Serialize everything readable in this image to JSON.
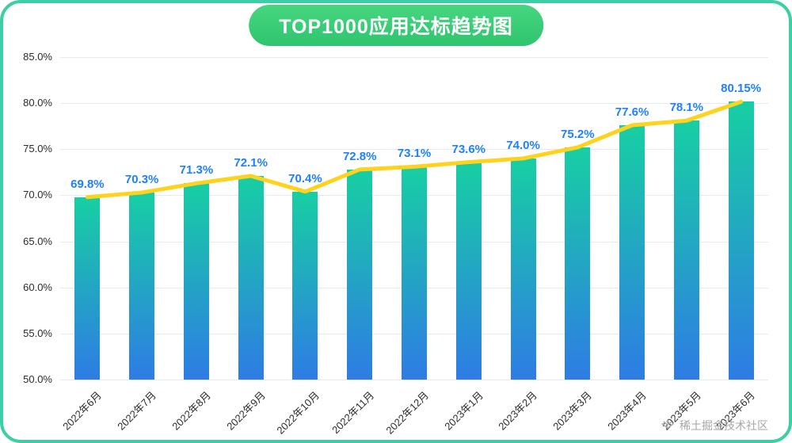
{
  "title": "TOP1000应用达标趋势图",
  "watermark": {
    "text": "稀土掘金技术社区"
  },
  "chart_data": {
    "type": "bar",
    "overlay_line": true,
    "title": "TOP1000应用达标趋势图",
    "categories": [
      "2022年6月",
      "2022年7月",
      "2022年8月",
      "2022年9月",
      "2022年10月",
      "2022年11月",
      "2022年12月",
      "2023年1月",
      "2023年2月",
      "2023年3月",
      "2023年4月",
      "2023年5月",
      "2023年6月"
    ],
    "values": [
      69.8,
      70.3,
      71.3,
      72.1,
      70.4,
      72.8,
      73.1,
      73.6,
      74.0,
      75.2,
      77.6,
      78.1,
      80.15
    ],
    "value_labels": [
      "69.8%",
      "70.3%",
      "71.3%",
      "72.1%",
      "70.4%",
      "72.8%",
      "73.1%",
      "73.6%",
      "74.0%",
      "75.2%",
      "77.6%",
      "78.1%",
      "80.15%"
    ],
    "ylim": [
      50,
      85
    ],
    "ytick_values": [
      85,
      80,
      75,
      70,
      65,
      60,
      55,
      50
    ],
    "ytick_labels": [
      "85.0%",
      "80.0%",
      "75.0%",
      "70.0%",
      "65.0%",
      "60.0%",
      "55.0%",
      "50.0%"
    ],
    "grid": true,
    "legend": false,
    "colors": {
      "bar_gradient_top": "#17cfa3",
      "bar_gradient_bottom": "#2e7ce4",
      "line": "#ffd21e",
      "value_label": "#1e80ff",
      "title_bg_top": "#47d680",
      "title_bg_bottom": "#2fc46e",
      "card_border": "#3ccfa5",
      "axis_text": "#2b2b2b",
      "grid_line": "#e7e9ec",
      "watermark": "#a6a6a6"
    }
  }
}
